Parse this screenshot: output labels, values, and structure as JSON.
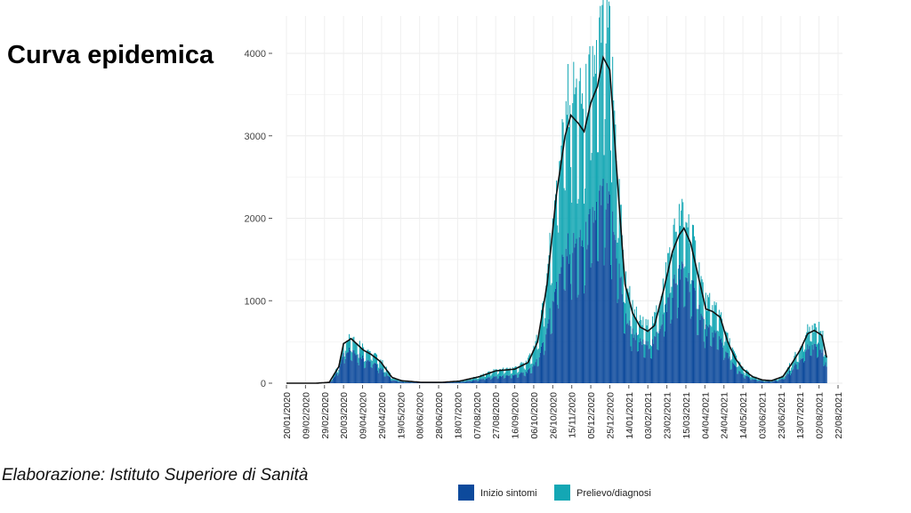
{
  "slide": {
    "title": "Curva epidemica",
    "source": "Elaborazione: Istituto Superiore di Sanità"
  },
  "chart_data": {
    "type": "bar",
    "stacked": true,
    "title": "",
    "xlabel": "",
    "ylabel": "",
    "ylim": [
      0,
      4000
    ],
    "yticks": [
      0,
      1000,
      2000,
      3000,
      4000
    ],
    "ytick_labels": [
      "0",
      "1000",
      "2000",
      "3000",
      "4000"
    ],
    "x_start": "2020-01-20",
    "x_end": "2021-08-22",
    "xtick_labels": [
      "20/01/2020",
      "09/02/2020",
      "29/02/2020",
      "20/03/2020",
      "09/04/2020",
      "29/04/2020",
      "19/05/2020",
      "08/06/2020",
      "28/06/2020",
      "18/07/2020",
      "07/08/2020",
      "27/08/2020",
      "16/09/2020",
      "06/10/2020",
      "26/10/2020",
      "15/11/2020",
      "05/12/2020",
      "25/12/2020",
      "14/01/2021",
      "03/02/2021",
      "23/02/2021",
      "15/03/2021",
      "04/04/2021",
      "24/04/2021",
      "14/05/2021",
      "03/06/2021",
      "23/06/2021",
      "13/07/2021",
      "02/08/2021",
      "22/08/2021"
    ],
    "grid": true,
    "legend_position": "bottom",
    "series": [
      {
        "name": "Inizio sintomi",
        "color": "#0d4a9c"
      },
      {
        "name": "Prelievo/diagnosi",
        "color": "#14a7b4"
      }
    ],
    "trend_line": {
      "color": "#111111"
    },
    "keypoints": {
      "dates": [
        "2020-01-20",
        "2020-02-20",
        "2020-03-05",
        "2020-03-15",
        "2020-03-20",
        "2020-03-28",
        "2020-04-10",
        "2020-04-18",
        "2020-04-28",
        "2020-05-10",
        "2020-05-20",
        "2020-06-10",
        "2020-07-01",
        "2020-07-20",
        "2020-08-10",
        "2020-08-27",
        "2020-09-16",
        "2020-09-30",
        "2020-10-10",
        "2020-10-20",
        "2020-10-30",
        "2020-11-08",
        "2020-11-14",
        "2020-11-22",
        "2020-11-28",
        "2020-12-05",
        "2020-12-12",
        "2020-12-18",
        "2020-12-25",
        "2021-01-03",
        "2021-01-10",
        "2021-01-18",
        "2021-01-26",
        "2021-02-03",
        "2021-02-10",
        "2021-02-20",
        "2021-03-01",
        "2021-03-08",
        "2021-03-13",
        "2021-03-20",
        "2021-03-28",
        "2021-04-05",
        "2021-04-12",
        "2021-04-20",
        "2021-04-28",
        "2021-05-06",
        "2021-05-14",
        "2021-05-24",
        "2021-06-03",
        "2021-06-13",
        "2021-06-25",
        "2021-07-05",
        "2021-07-13",
        "2021-07-21",
        "2021-07-28",
        "2021-08-05",
        "2021-08-10"
      ],
      "total": [
        0,
        0,
        10,
        200,
        480,
        540,
        400,
        350,
        260,
        70,
        30,
        10,
        10,
        25,
        80,
        150,
        170,
        250,
        500,
        1200,
        2300,
        3000,
        3250,
        3150,
        3050,
        3400,
        3600,
        3950,
        3800,
        2300,
        1200,
        850,
        680,
        630,
        700,
        1150,
        1600,
        1800,
        1880,
        1700,
        1300,
        900,
        870,
        800,
        500,
        300,
        170,
        80,
        40,
        30,
        80,
        250,
        400,
        600,
        640,
        580,
        310
      ],
      "inizio_share": [
        0,
        0,
        0.6,
        0.72,
        0.75,
        0.72,
        0.7,
        0.68,
        0.65,
        0.55,
        0.5,
        0.5,
        0.5,
        0.5,
        0.5,
        0.5,
        0.52,
        0.52,
        0.5,
        0.5,
        0.5,
        0.48,
        0.46,
        0.48,
        0.5,
        0.52,
        0.53,
        0.52,
        0.5,
        0.58,
        0.62,
        0.66,
        0.66,
        0.66,
        0.66,
        0.66,
        0.66,
        0.66,
        0.66,
        0.65,
        0.65,
        0.65,
        0.65,
        0.64,
        0.6,
        0.58,
        0.55,
        0.55,
        0.55,
        0.55,
        0.6,
        0.64,
        0.66,
        0.66,
        0.66,
        0.64,
        0.64
      ]
    }
  }
}
